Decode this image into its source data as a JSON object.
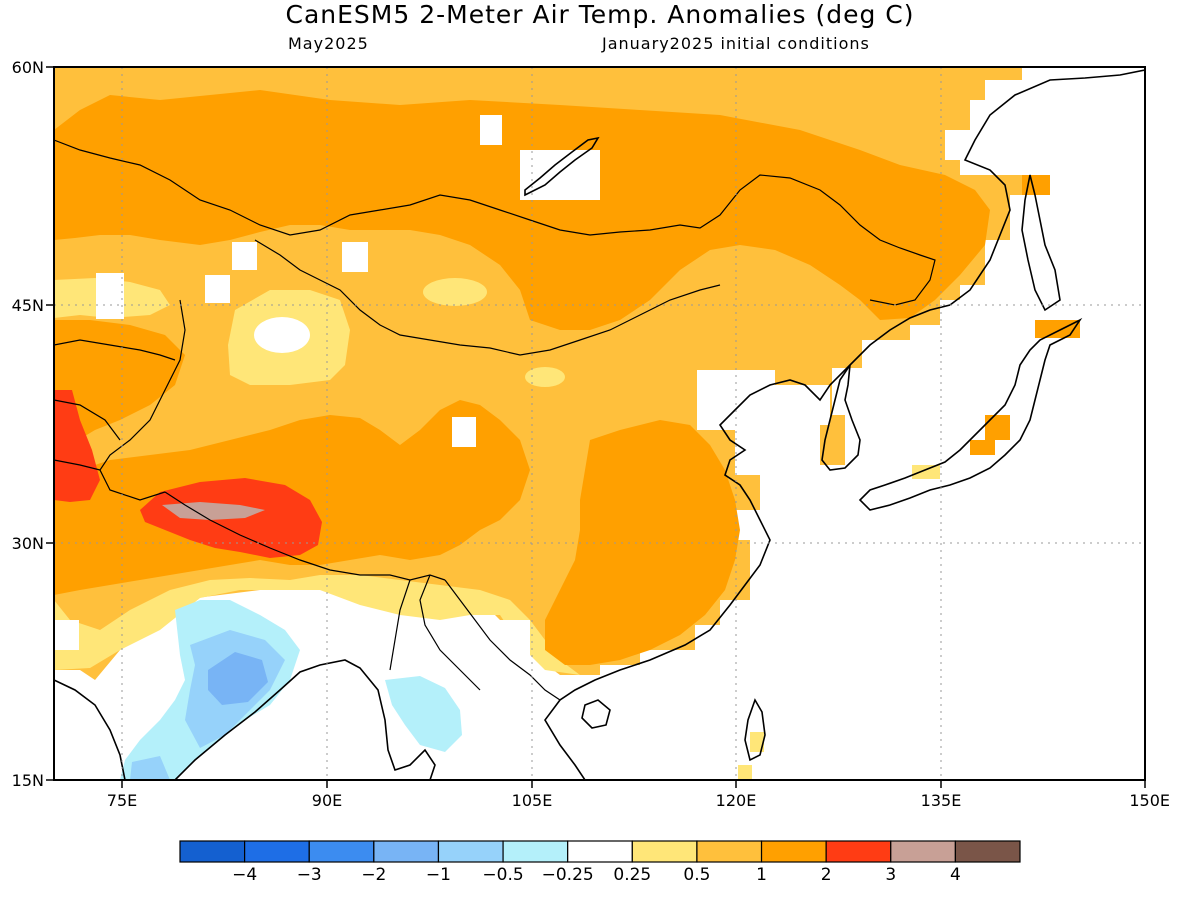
{
  "header": {
    "title": "CanESM5 2-Meter Air Temp. Anomalies (deg C)",
    "valid_month": "May2025",
    "init": "January2025 initial conditions"
  },
  "map": {
    "lon_range": [
      70,
      150
    ],
    "lat_range": [
      15,
      60
    ],
    "lon_ticks": [
      {
        "value": 75,
        "label": "75E"
      },
      {
        "value": 90,
        "label": "90E"
      },
      {
        "value": 105,
        "label": "105E"
      },
      {
        "value": 120,
        "label": "120E"
      },
      {
        "value": 135,
        "label": "135E"
      },
      {
        "value": 150,
        "label": "150E"
      }
    ],
    "lat_ticks": [
      {
        "value": 15,
        "label": "15N"
      },
      {
        "value": 30,
        "label": "30N"
      },
      {
        "value": 45,
        "label": "45N"
      },
      {
        "value": 60,
        "label": "60N"
      }
    ],
    "gridlines": "dotted"
  },
  "colorbar": {
    "colors": [
      "#1460d0",
      "#1e6ee6",
      "#3c8cf0",
      "#78b4f5",
      "#96d2fa",
      "#b4f0fa",
      "#ffffff",
      "#ffe678",
      "#ffc03c",
      "#ffa000",
      "#ff3c14",
      "#c8a096",
      "#7a5548"
    ],
    "labels": [
      "-4",
      "-3",
      "-2",
      "-1",
      "-0.5",
      "-0.25",
      "0.25",
      "0.5",
      "1",
      "2",
      "3",
      "4"
    ]
  },
  "colors": {
    "neutral": "#ffffff",
    "pale_yellow": "#ffe678",
    "light_orange": "#ffc03c",
    "orange": "#ffa000",
    "red": "#ff3c14",
    "mauve": "#c8a096",
    "light_blue": "#b4f0fa",
    "sky_blue": "#96d2fa",
    "mid_blue": "#78b4f5"
  }
}
